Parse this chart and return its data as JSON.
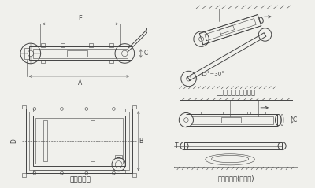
{
  "bg_color": "#f0f0ec",
  "line_color": "#444444",
  "text_color": "#333333",
  "label_waizhuang": "外形尺寸图",
  "label_qingxieshi": "安装示意图（倾斜式）",
  "label_shuipingshi": "安装示意图(水平式)",
  "angle_label": "15°~30°"
}
